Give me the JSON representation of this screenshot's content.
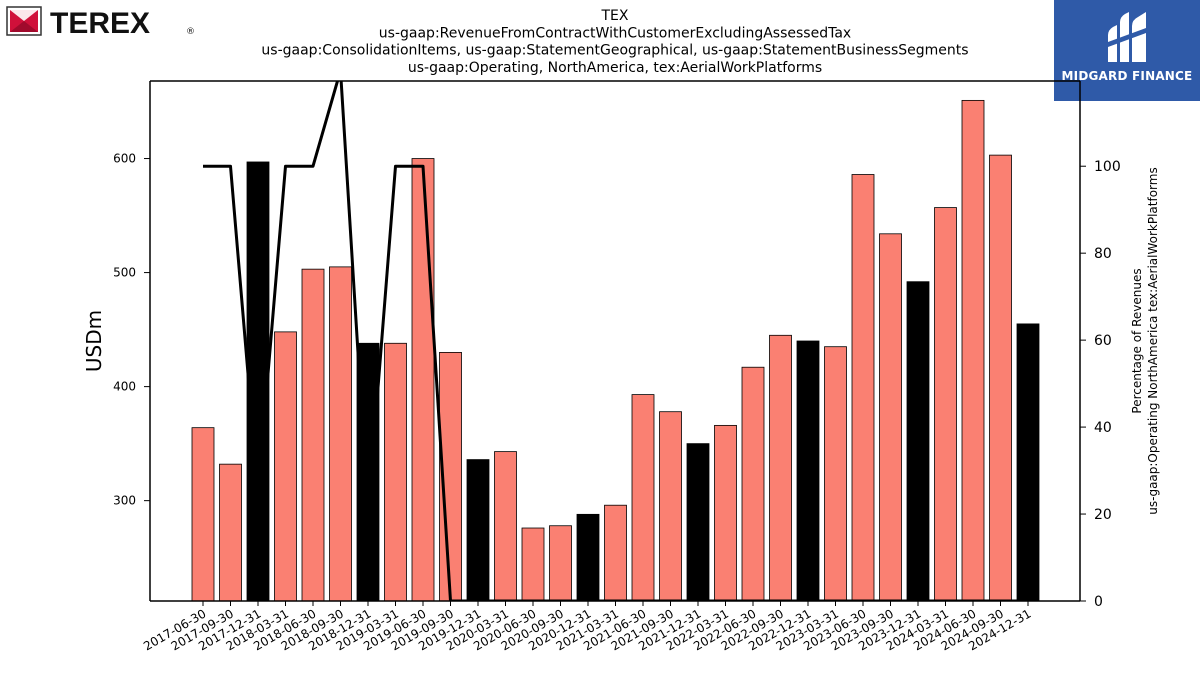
{
  "logos": {
    "left_brand": "TEREX",
    "left_registered": "®",
    "right_brand": "MIDGARD FINANCE",
    "right_color": "#2f5aa8"
  },
  "chart_data": {
    "type": "bar",
    "title_lines": [
      "TEX",
      "us-gaap:RevenueFromContractWithCustomerExcludingAssessedTax",
      "us-gaap:ConsolidationItems, us-gaap:StatementGeographical, us-gaap:StatementBusinessSegments",
      "us-gaap:Operating, NorthAmerica, tex:AerialWorkPlatforms"
    ],
    "ylabel": "USDm",
    "y2label_lines": [
      "Percentage of Revenues",
      "us-gaap:Operating NorthAmerica tex:AerialWorkPlatforms"
    ],
    "ylim": [
      212,
      668
    ],
    "y_ticks": [
      300,
      400,
      500,
      600
    ],
    "y2lim": [
      0,
      119.6
    ],
    "y2_ticks": [
      0,
      20,
      40,
      60,
      80,
      100
    ],
    "colors": {
      "bar_default": "#fa8072",
      "bar_highlight": "#000000",
      "line": "#000000"
    },
    "categories": [
      "2017-06-30",
      "2017-09-30",
      "2017-12-31",
      "2018-03-31",
      "2018-06-30",
      "2018-09-30",
      "2018-12-31",
      "2019-03-31",
      "2019-06-30",
      "2019-09-30",
      "2019-12-31",
      "2020-03-31",
      "2020-06-30",
      "2020-09-30",
      "2020-12-31",
      "2021-03-31",
      "2021-06-30",
      "2021-09-30",
      "2021-12-31",
      "2022-03-31",
      "2022-06-30",
      "2022-09-30",
      "2022-12-31",
      "2023-03-31",
      "2023-06-30",
      "2023-09-30",
      "2023-12-31",
      "2024-03-31",
      "2024-06-30",
      "2024-09-30",
      "2024-12-31"
    ],
    "values": [
      364,
      332,
      597,
      448,
      503,
      505,
      438,
      438,
      600,
      430,
      336,
      343,
      276,
      278,
      288,
      296,
      393,
      378,
      350,
      366,
      417,
      445,
      440,
      435,
      586,
      534,
      492,
      557,
      651,
      603,
      455
    ],
    "highlight": [
      false,
      false,
      true,
      false,
      false,
      false,
      true,
      false,
      false,
      false,
      true,
      false,
      false,
      false,
      true,
      false,
      false,
      false,
      true,
      false,
      false,
      false,
      true,
      false,
      false,
      false,
      true,
      false,
      false,
      false,
      true
    ],
    "line_series": {
      "values": [
        100,
        100,
        25,
        100,
        100,
        122,
        20,
        100,
        100,
        0,
        0,
        0,
        0,
        0,
        0,
        0,
        0,
        0,
        0,
        0,
        0,
        0,
        0,
        0,
        0,
        0,
        0,
        0,
        0,
        0,
        0
      ]
    }
  }
}
